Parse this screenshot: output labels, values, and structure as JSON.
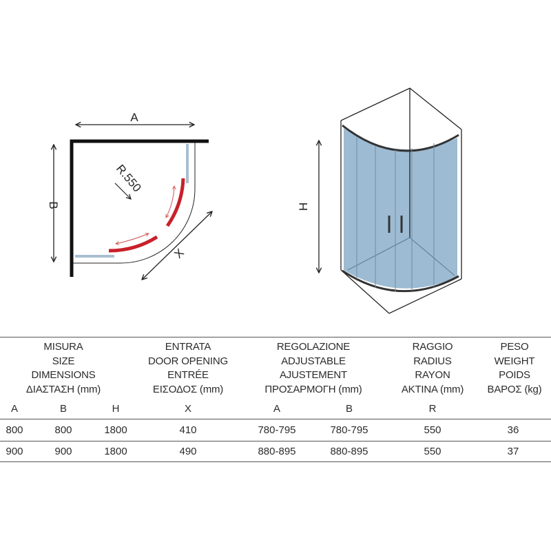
{
  "diagram": {
    "plan": {
      "label_a": "A",
      "label_b": "B",
      "label_radius": "R.550",
      "label_x": "X"
    },
    "elevation": {
      "label_h": "H"
    },
    "colors": {
      "door": "#c8202a",
      "fixed_panel": "#a9bfd0",
      "glass": "#9dbbd2",
      "frame": "#222222"
    }
  },
  "table": {
    "groups": [
      {
        "lines": [
          "MISURA",
          "SIZE",
          "DIMENSIONS",
          "ΔΙΑΣΤΑΣΗ (mm)"
        ]
      },
      {
        "lines": [
          "ENTRATA",
          "DOOR OPENING",
          "ENTRÉE",
          "ΕΙΣΟΔΟΣ (mm)"
        ]
      },
      {
        "lines": [
          "REGOLAZIONE",
          "ADJUSTABLE",
          "AJUSTEMENT",
          "ΠΡΟΣΑΡΜΟΓΗ (mm)"
        ]
      },
      {
        "lines": [
          "RAGGIO",
          "RADIUS",
          "RAYON",
          "ΑΚΤΙΝΑ (mm)"
        ]
      },
      {
        "lines": [
          "PESO",
          "WEIGHT",
          "POIDS",
          "ΒΑΡΟΣ (kg)"
        ]
      }
    ],
    "subheaders": [
      "A",
      "B",
      "H",
      "X",
      "A",
      "B",
      "R",
      ""
    ],
    "rows": [
      [
        "800",
        "800",
        "1800",
        "410",
        "780-795",
        "780-795",
        "550",
        "36"
      ],
      [
        "900",
        "900",
        "1800",
        "490",
        "880-895",
        "880-895",
        "550",
        "37"
      ]
    ]
  }
}
